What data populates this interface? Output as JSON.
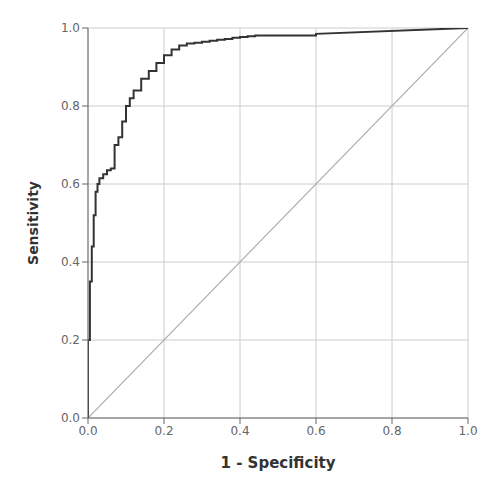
{
  "chart_data": {
    "type": "line",
    "xlabel": "1 - Specificity",
    "ylabel": "Sensitivity",
    "xlim": [
      0.0,
      1.0
    ],
    "ylim": [
      0.0,
      1.0
    ],
    "xticks": [
      {
        "value": 0.0,
        "label": "0.0"
      },
      0.2,
      0.4,
      0.6,
      0.8,
      {
        "value": 1.0,
        "label": "1.0"
      }
    ],
    "yticks": [
      {
        "value": 0.0,
        "label": "0.0"
      },
      0.2,
      0.4,
      0.6,
      0.8,
      {
        "value": 1.0,
        "label": "1.0"
      }
    ],
    "grid": true,
    "x": [
      0.0,
      0.0,
      0.0,
      0.005,
      0.005,
      0.01,
      0.01,
      0.015,
      0.015,
      0.02,
      0.02,
      0.025,
      0.025,
      0.03,
      0.03,
      0.04,
      0.04,
      0.05,
      0.05,
      0.06,
      0.06,
      0.07,
      0.07,
      0.08,
      0.08,
      0.09,
      0.09,
      0.1,
      0.1,
      0.11,
      0.11,
      0.12,
      0.12,
      0.14,
      0.14,
      0.16,
      0.16,
      0.18,
      0.18,
      0.2,
      0.2,
      0.22,
      0.22,
      0.24,
      0.24,
      0.26,
      0.26,
      0.28,
      0.28,
      0.3,
      0.3,
      0.32,
      0.32,
      0.34,
      0.34,
      0.36,
      0.36,
      0.38,
      0.38,
      0.4,
      0.4,
      0.42,
      0.42,
      0.44,
      0.44,
      0.6,
      0.6,
      1.0
    ],
    "values": [
      0.0,
      0.14,
      0.2,
      0.2,
      0.35,
      0.35,
      0.44,
      0.44,
      0.52,
      0.52,
      0.58,
      0.58,
      0.6,
      0.6,
      0.615,
      0.615,
      0.625,
      0.625,
      0.635,
      0.635,
      0.64,
      0.64,
      0.7,
      0.7,
      0.72,
      0.72,
      0.76,
      0.76,
      0.8,
      0.8,
      0.82,
      0.82,
      0.84,
      0.84,
      0.87,
      0.87,
      0.89,
      0.89,
      0.91,
      0.91,
      0.93,
      0.93,
      0.945,
      0.945,
      0.955,
      0.955,
      0.96,
      0.96,
      0.962,
      0.962,
      0.965,
      0.965,
      0.967,
      0.967,
      0.97,
      0.97,
      0.972,
      0.972,
      0.975,
      0.975,
      0.977,
      0.977,
      0.979,
      0.979,
      0.981,
      0.981,
      0.985,
      1.0
    ],
    "color": "#333333",
    "diagonal": {
      "x": [
        0,
        1
      ],
      "y": [
        0,
        1
      ],
      "color": "#aaaaaa"
    }
  }
}
